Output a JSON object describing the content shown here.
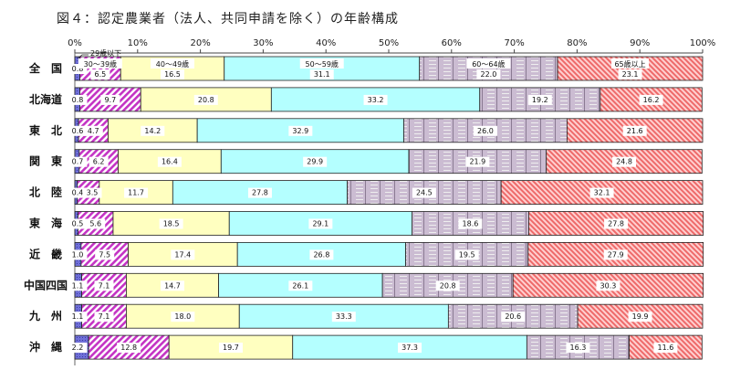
{
  "chart_data": {
    "type": "bar",
    "orientation": "horizontal",
    "stacked": true,
    "title": "図４：認定農業者（法人、共同申請を除く）の年齢構成",
    "xlim": [
      0,
      100
    ],
    "x_ticks": [
      "0%",
      "10%",
      "20%",
      "30%",
      "40%",
      "50%",
      "60%",
      "70%",
      "80%",
      "90%",
      "100%"
    ],
    "categories": [
      "全　国",
      "北海道",
      "東　北",
      "関　東",
      "北　陸",
      "東　海",
      "近　畿",
      "中国四国",
      "九　州",
      "沖　縄"
    ],
    "series": [
      {
        "name": "29歳以下",
        "color": "#6f6fd8",
        "values": [
          0.8,
          0.8,
          0.6,
          0.7,
          0.4,
          0.5,
          1.0,
          1.1,
          1.1,
          2.2
        ]
      },
      {
        "name": "30～39歳",
        "color": "#cc44cc",
        "values": [
          6.5,
          9.7,
          4.7,
          6.2,
          3.5,
          5.6,
          7.5,
          7.1,
          7.1,
          12.8
        ]
      },
      {
        "name": "40～49歳",
        "color": "#ffffc0",
        "values": [
          16.5,
          20.8,
          14.2,
          16.4,
          11.7,
          18.5,
          17.4,
          14.7,
          18.0,
          19.7
        ]
      },
      {
        "name": "50～59歳",
        "color": "#b4ffff",
        "values": [
          31.1,
          33.2,
          32.9,
          29.9,
          27.8,
          29.1,
          26.8,
          26.1,
          33.3,
          37.3
        ]
      },
      {
        "name": "60～64歳",
        "color": "#cbbcd2",
        "values": [
          22.0,
          19.2,
          26.0,
          21.9,
          24.5,
          18.6,
          19.5,
          20.8,
          20.6,
          16.3
        ]
      },
      {
        "name": "65歳以上",
        "color": "#ff8c8c",
        "values": [
          23.1,
          16.2,
          21.6,
          24.8,
          32.1,
          27.8,
          27.9,
          30.3,
          19.9,
          11.6
        ]
      }
    ],
    "value_labels": [
      [
        "0.8",
        "6.5",
        "16.5",
        "31.1",
        "22.0",
        "23.1"
      ],
      [
        "0.8",
        "9.7",
        "20.8",
        "33.2",
        "19.2",
        "16.2"
      ],
      [
        "0.6",
        "4.7",
        "14.2",
        "32.9",
        "26.0",
        "21.6"
      ],
      [
        "0.7",
        "6.2",
        "16.4",
        "29.9",
        "21.9",
        "24.8"
      ],
      [
        "0.4",
        "3.5",
        "11.7",
        "27.8",
        "24.5",
        "32.1"
      ],
      [
        "0.5",
        "5.6",
        "18.5",
        "29.1",
        "18.6",
        "27.8"
      ],
      [
        "1.0",
        "7.5",
        "17.4",
        "26.8",
        "19.5",
        "27.9"
      ],
      [
        "1.1",
        "7.1",
        "14.7",
        "26.1",
        "20.8",
        "30.3"
      ],
      [
        "1.1",
        "7.1",
        "18.0",
        "33.3",
        "20.6",
        "19.9"
      ],
      [
        "2.2",
        "12.8",
        "19.7",
        "37.3",
        "16.3",
        "11.6"
      ]
    ],
    "legend": "inline labels on first bar",
    "grid": false
  }
}
